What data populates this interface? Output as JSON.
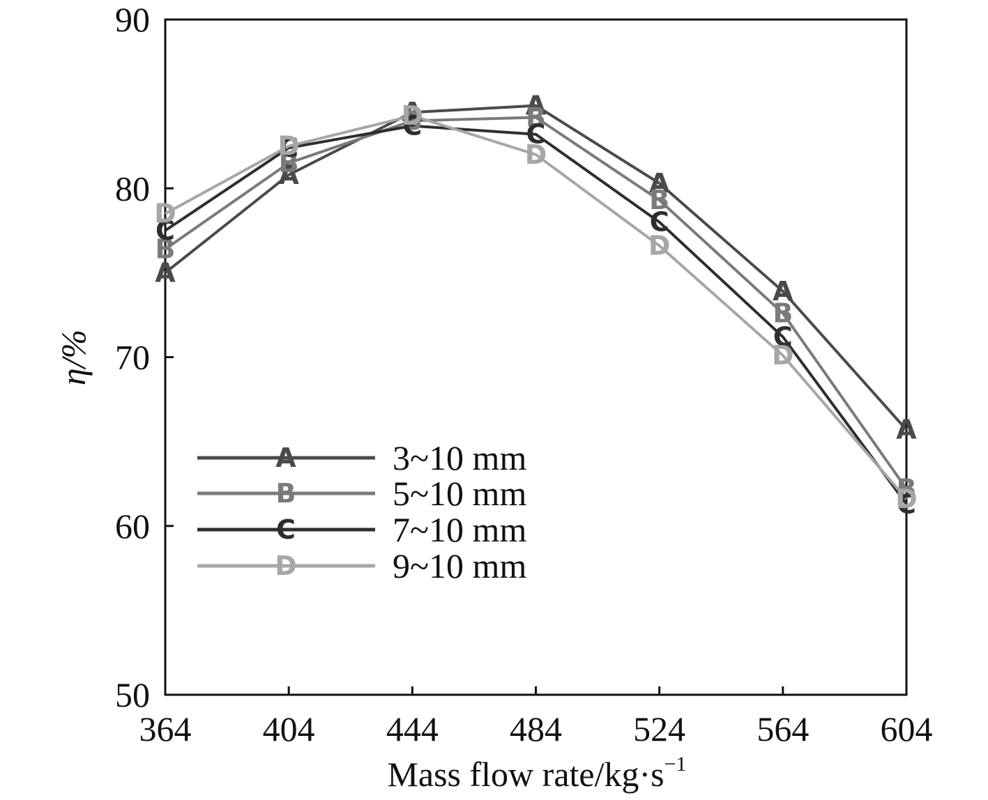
{
  "chart_data": {
    "type": "line",
    "title": "",
    "xlabel": "Mass flow rate/kg·s",
    "xlabel_sup": "−1",
    "ylabel": "η/%",
    "x": [
      364,
      404,
      444,
      484,
      524,
      564,
      604
    ],
    "xlim": [
      364,
      604
    ],
    "ylim": [
      50,
      90
    ],
    "xticks": [
      "364",
      "404",
      "444",
      "484",
      "524",
      "564",
      "604"
    ],
    "yticks": [
      "50",
      "60",
      "70",
      "80",
      "90"
    ],
    "grid": false,
    "legend_position": "center-left",
    "series": [
      {
        "name": "3~10 mm",
        "marker": "A",
        "color": "#4a4a4a",
        "values": [
          75.0,
          80.8,
          84.5,
          84.9,
          80.3,
          73.9,
          65.7
        ]
      },
      {
        "name": "5~10 mm",
        "marker": "B",
        "color": "#7a7a7a",
        "values": [
          76.4,
          81.5,
          84.0,
          84.2,
          79.3,
          72.6,
          62.2
        ]
      },
      {
        "name": "7~10 mm",
        "marker": "C",
        "color": "#2e2e2e",
        "values": [
          77.5,
          82.4,
          83.7,
          83.2,
          78.0,
          71.2,
          61.3
        ]
      },
      {
        "name": "9~10 mm",
        "marker": "D",
        "color": "#a6a6a6",
        "values": [
          78.5,
          82.5,
          84.3,
          82.0,
          76.6,
          70.1,
          61.6
        ]
      }
    ]
  }
}
